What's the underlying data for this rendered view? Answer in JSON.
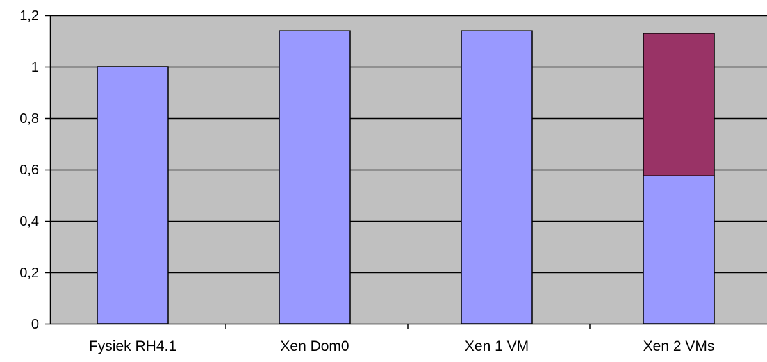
{
  "chart_data": {
    "type": "bar",
    "stacked": true,
    "categories": [
      "Fysiek RH4.1",
      "Xen Dom0",
      "Xen 1 VM",
      "Xen 2 VMs"
    ],
    "series": [
      {
        "values": [
          1.0,
          1.14,
          1.14,
          0.575
        ]
      },
      {
        "values": [
          0,
          0,
          0,
          0.555
        ]
      }
    ],
    "colors": [
      "#9999ff",
      "#993366"
    ],
    "ylim": [
      0,
      1.2
    ],
    "yticks": [
      "0",
      "0,2",
      "0,4",
      "0,6",
      "0,8",
      "1",
      "1,2"
    ],
    "grid": true,
    "plot_background": "#c0c0c0",
    "legend": "none",
    "title": "",
    "xlabel": "",
    "ylabel": ""
  }
}
